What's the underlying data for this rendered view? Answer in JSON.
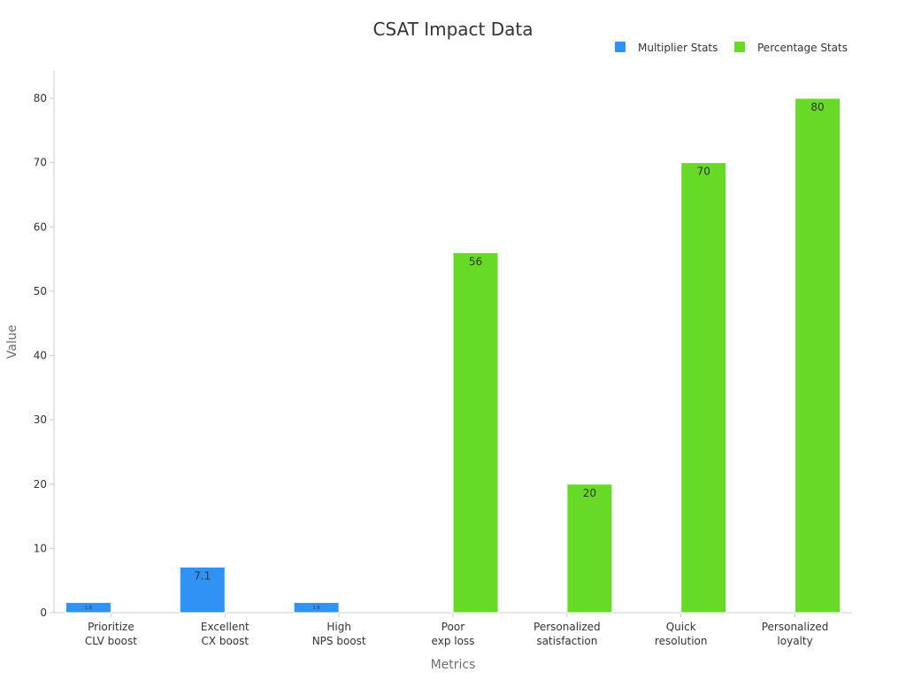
{
  "chart_data": {
    "type": "bar",
    "title": "CSAT Impact Data",
    "xlabel": "Metrics",
    "ylabel": "Value",
    "ylim": [
      0,
      84
    ],
    "yticks": [
      0,
      10,
      20,
      30,
      40,
      50,
      60,
      70,
      80
    ],
    "grid": false,
    "legend_position": "top-right",
    "categories": [
      [
        "Prioritize",
        "CLV boost"
      ],
      [
        "Excellent",
        "CX boost"
      ],
      [
        "High",
        "NPS boost"
      ],
      [
        "Poor",
        "exp loss"
      ],
      [
        "Personalized",
        "satisfaction"
      ],
      [
        "Quick",
        "resolution"
      ],
      [
        "Personalized",
        "loyalty"
      ]
    ],
    "series": [
      {
        "name": "Multiplier Stats",
        "color": "#2f92f4",
        "values": [
          1.6,
          7.1,
          1.6,
          null,
          null,
          null,
          null
        ],
        "labels": [
          "1.6",
          "7.1",
          "1.6",
          "",
          "",
          "",
          ""
        ]
      },
      {
        "name": "Percentage Stats",
        "color": "#66da26",
        "values": [
          null,
          null,
          null,
          56,
          20,
          70,
          80
        ],
        "labels": [
          "",
          "",
          "",
          "56",
          "20",
          "70",
          "80"
        ]
      }
    ]
  }
}
